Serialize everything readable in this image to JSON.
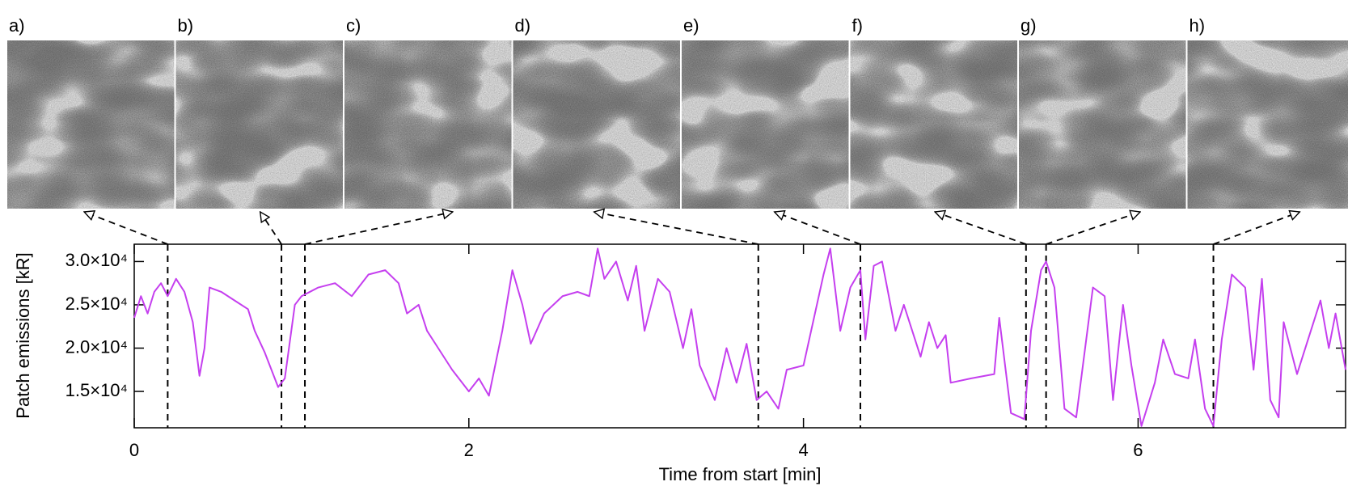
{
  "chart_data": {
    "type": "line",
    "xlabel": "Time from start [min]",
    "ylabel": "Patch emissions [kR]",
    "color": "#c53fef",
    "xlim": [
      0,
      7.24
    ],
    "ylim": [
      10800,
      32000
    ],
    "xticks": [
      0,
      2,
      4,
      6
    ],
    "yticks": [
      {
        "value": 15000,
        "label": "1.5×10⁴"
      },
      {
        "value": 20000,
        "label": "2.0×10⁴"
      },
      {
        "value": 25000,
        "label": "2.5×10⁴"
      },
      {
        "value": 30000,
        "label": "3.0×10⁴"
      }
    ],
    "frames": [
      {
        "label": "a)",
        "time": 0.2
      },
      {
        "label": "b)",
        "time": 0.88
      },
      {
        "label": "c)",
        "time": 1.02
      },
      {
        "label": "d)",
        "time": 3.73
      },
      {
        "label": "e)",
        "time": 4.34
      },
      {
        "label": "f)",
        "time": 5.33
      },
      {
        "label": "g)",
        "time": 5.45
      },
      {
        "label": "h)",
        "time": 6.45
      }
    ],
    "x": [
      0,
      0.04,
      0.08,
      0.12,
      0.16,
      0.2,
      0.25,
      0.3,
      0.35,
      0.39,
      0.42,
      0.45,
      0.52,
      0.6,
      0.68,
      0.72,
      0.78,
      0.86,
      0.9,
      0.96,
      1.0,
      1.1,
      1.2,
      1.3,
      1.4,
      1.5,
      1.58,
      1.63,
      1.7,
      1.75,
      1.8,
      1.9,
      2.0,
      2.06,
      2.12,
      2.2,
      2.26,
      2.32,
      2.37,
      2.45,
      2.56,
      2.65,
      2.72,
      2.77,
      2.81,
      2.88,
      2.95,
      3.0,
      3.05,
      3.13,
      3.2,
      3.28,
      3.33,
      3.38,
      3.47,
      3.54,
      3.6,
      3.66,
      3.72,
      3.78,
      3.85,
      3.9,
      4.0,
      4.08,
      4.12,
      4.16,
      4.22,
      4.28,
      4.34,
      4.37,
      4.42,
      4.47,
      4.55,
      4.6,
      4.7,
      4.75,
      4.8,
      4.85,
      4.88,
      5.0,
      5.14,
      5.17,
      5.24,
      5.32,
      5.36,
      5.42,
      5.45,
      5.5,
      5.56,
      5.63,
      5.73,
      5.8,
      5.85,
      5.91,
      5.96,
      6.02,
      6.1,
      6.15,
      6.22,
      6.3,
      6.34,
      6.4,
      6.45,
      6.5,
      6.56,
      6.64,
      6.69,
      6.74,
      6.79,
      6.84,
      6.87,
      6.95,
      7.09,
      7.14,
      7.18,
      7.24
    ],
    "values": [
      23500,
      26000,
      24000,
      26500,
      27500,
      26000,
      28000,
      26500,
      23000,
      16800,
      20000,
      27000,
      26500,
      25500,
      24500,
      22000,
      19500,
      15500,
      16500,
      25000,
      26000,
      27000,
      27500,
      26000,
      28500,
      29000,
      27500,
      24000,
      25000,
      22000,
      20500,
      17500,
      15000,
      16500,
      14500,
      22000,
      29000,
      25000,
      20500,
      24000,
      26000,
      26500,
      26000,
      31500,
      28000,
      30000,
      25500,
      29500,
      22000,
      28000,
      26500,
      20000,
      24500,
      18000,
      14000,
      20000,
      16000,
      20500,
      14000,
      15000,
      13000,
      17500,
      18000,
      25000,
      28500,
      31500,
      22000,
      27000,
      29000,
      21000,
      29500,
      30000,
      22000,
      25000,
      19000,
      23000,
      20000,
      21500,
      16000,
      16500,
      17000,
      23500,
      12500,
      11800,
      22000,
      29000,
      30000,
      27000,
      13000,
      12000,
      27000,
      26000,
      14000,
      25000,
      18000,
      11000,
      16000,
      21000,
      17000,
      16500,
      21000,
      13000,
      11000,
      21000,
      28500,
      27000,
      17500,
      28000,
      14000,
      12000,
      23000,
      17000,
      25500,
      20000,
      24000,
      17500
    ]
  }
}
